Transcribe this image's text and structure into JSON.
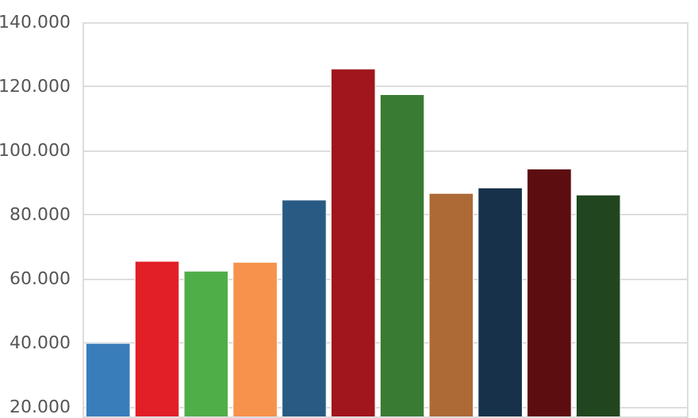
{
  "chart_data": {
    "type": "bar",
    "categories": [
      null,
      null,
      null,
      null,
      null,
      null,
      null,
      null,
      null,
      null,
      null
    ],
    "values": [
      39800,
      65400,
      62300,
      65100,
      84500,
      125400,
      117400,
      86600,
      88300,
      94200,
      86100
    ],
    "colors": [
      "#3a7dbb",
      "#e21e26",
      "#50ae48",
      "#f6924c",
      "#285a84",
      "#a0161c",
      "#3a7b33",
      "#ad6a36",
      "#17314b",
      "#5b0d10",
      "#21461f"
    ],
    "ylim": [
      17000,
      140000
    ],
    "yticks": [
      {
        "value": 20000,
        "label": "20.000"
      },
      {
        "value": 40000,
        "label": "40.000"
      },
      {
        "value": 60000,
        "label": "60.000"
      },
      {
        "value": 80000,
        "label": "80.000"
      },
      {
        "value": 100000,
        "label": "100.000"
      },
      {
        "value": 120000,
        "label": "120.000"
      },
      {
        "value": 140000,
        "label": "140.000"
      }
    ],
    "grid": "y"
  }
}
